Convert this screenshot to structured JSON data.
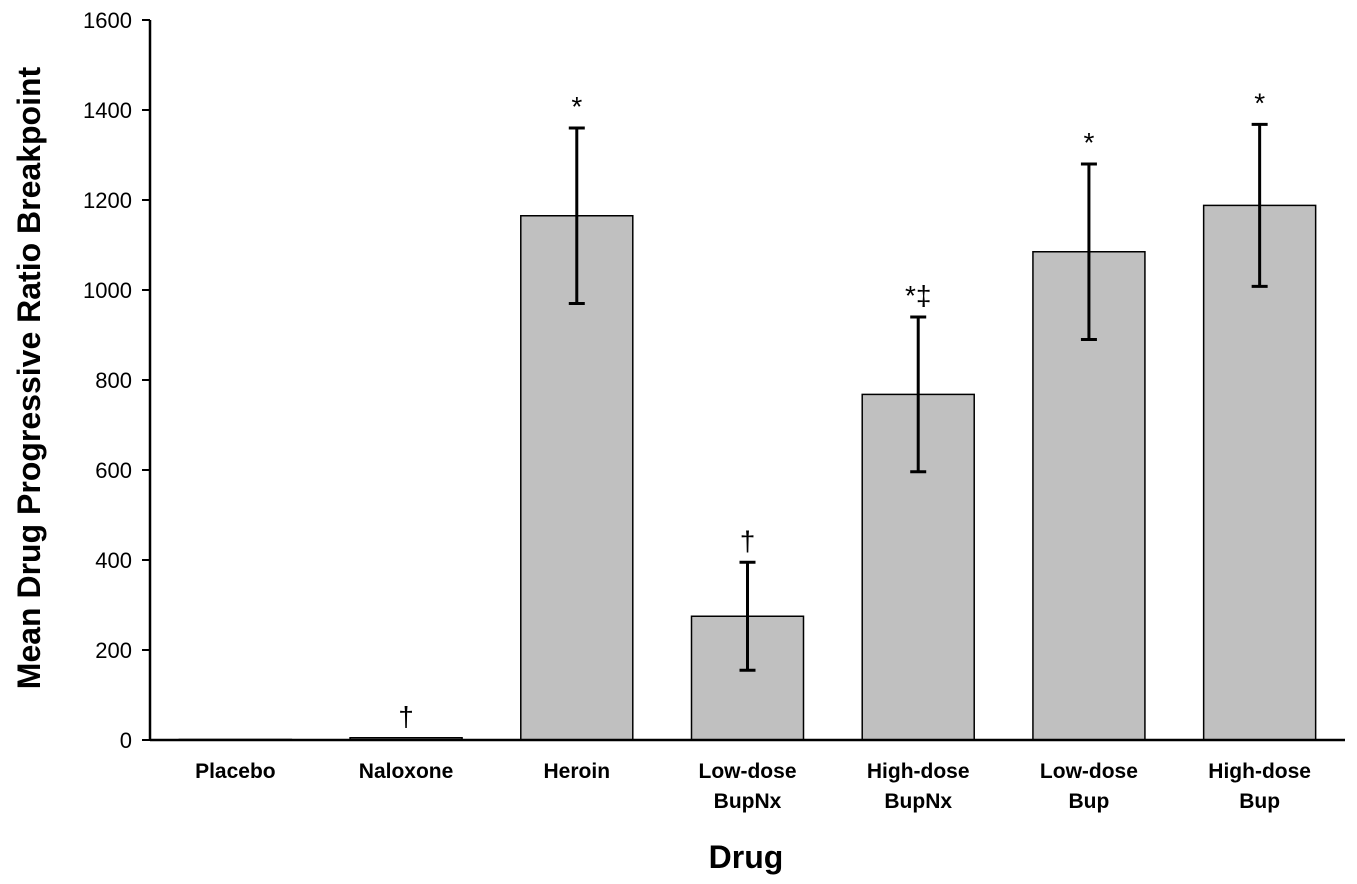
{
  "chart_data": {
    "type": "bar",
    "title": "",
    "xlabel": "Drug",
    "ylabel": "Mean Drug Progressive Ratio Breakpoint",
    "ylim": [
      0,
      1600
    ],
    "yticks": [
      0,
      200,
      400,
      600,
      800,
      1000,
      1200,
      1400,
      1600
    ],
    "grid": false,
    "legend": "none",
    "bar_color": "#c0c0c0",
    "categories": [
      [
        "Placebo"
      ],
      [
        "Naloxone"
      ],
      [
        "Heroin"
      ],
      [
        "Low-dose",
        "BupNx"
      ],
      [
        "High-dose",
        "BupNx"
      ],
      [
        "Low-dose",
        "Bup"
      ],
      [
        "High-dose",
        "Bup"
      ]
    ],
    "values": [
      0,
      5,
      1165,
      275,
      768,
      1085,
      1188
    ],
    "errors": [
      null,
      null,
      195,
      120,
      172,
      195,
      180
    ],
    "annotations": [
      "",
      "†",
      "*",
      "†",
      "*‡",
      "*",
      "*"
    ]
  }
}
